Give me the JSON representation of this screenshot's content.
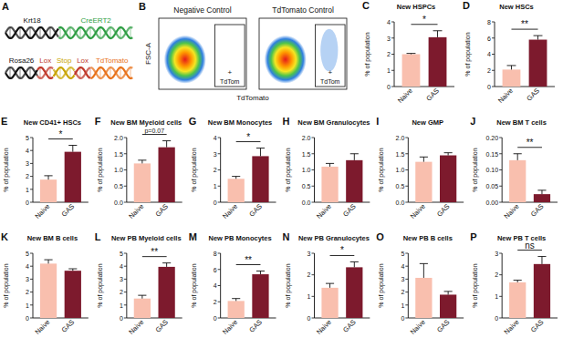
{
  "diagram": {
    "panel_label": "A",
    "constructs": [
      {
        "segments": [
          {
            "label": "Krt18",
            "color": "#111111"
          },
          {
            "label": "CreERT2",
            "color": "#2f9e44"
          }
        ]
      },
      {
        "segments": [
          {
            "label": "Rosa26",
            "color": "#111111"
          },
          {
            "label": "Lox",
            "color": "#c0392b"
          },
          {
            "label": "Stop",
            "color": "#c9a400"
          },
          {
            "label": "Lox",
            "color": "#c0392b"
          },
          {
            "label": "TdTomato",
            "color": "#e8731c"
          }
        ]
      }
    ]
  },
  "flow_plots": {
    "panel_label": "B",
    "x_label": "TdTomato",
    "y_label": "FSC-A",
    "plots": [
      {
        "title": "Negative Control",
        "gate_label": "TdTom",
        "gate_sign": "+"
      },
      {
        "title": "TdTomato Control",
        "gate_label": "TdTom",
        "gate_sign": "+"
      }
    ]
  },
  "chart_data": [
    {
      "type": "bar",
      "panel_label": "C",
      "title": "New HSPCs",
      "y_label": "% of population",
      "categories": [
        "Naive",
        "GAS"
      ],
      "values": [
        2.0,
        3.05
      ],
      "errors": [
        0.05,
        0.4
      ],
      "colors": [
        "#f9bfae",
        "#7d1a2d"
      ],
      "ylim": [
        0,
        4
      ],
      "yticks": [
        0,
        1,
        2,
        3,
        4
      ],
      "annotation": "*"
    },
    {
      "type": "bar",
      "panel_label": "D",
      "title": "New HSCs",
      "y_label": "% of population",
      "categories": [
        "Naive",
        "GAS"
      ],
      "values": [
        2.1,
        5.8
      ],
      "errors": [
        0.5,
        0.5
      ],
      "colors": [
        "#f9bfae",
        "#7d1a2d"
      ],
      "ylim": [
        0,
        8
      ],
      "yticks": [
        0,
        2,
        4,
        6,
        8
      ],
      "annotation": "**"
    },
    {
      "type": "bar",
      "panel_label": "E",
      "title": "New CD41+ HSCs",
      "y_label": "% of population",
      "categories": [
        "Naive",
        "GAS"
      ],
      "values": [
        1.75,
        3.9
      ],
      "errors": [
        0.3,
        0.5
      ],
      "colors": [
        "#f9bfae",
        "#7d1a2d"
      ],
      "ylim": [
        0,
        5
      ],
      "yticks": [
        0,
        1,
        2,
        3,
        4,
        5
      ],
      "annotation": "*"
    },
    {
      "type": "bar",
      "panel_label": "F",
      "title": "New BM Myeloid cells",
      "y_label": "% of population",
      "categories": [
        "Naive",
        "GAS"
      ],
      "values": [
        1.2,
        1.7
      ],
      "errors": [
        0.1,
        0.2
      ],
      "colors": [
        "#f9bfae",
        "#7d1a2d"
      ],
      "ylim": [
        0,
        2
      ],
      "yticks": [
        {
          "value": 0,
          "label": "0.0"
        },
        0.5,
        {
          "value": 1,
          "label": "1.0"
        },
        1.5,
        {
          "value": 2,
          "label": "2.0"
        }
      ],
      "annotation": "p=0.07"
    },
    {
      "type": "bar",
      "panel_label": "G",
      "title": "New BM Monocytes",
      "y_label": "% of population",
      "categories": [
        "Naive",
        "GAS"
      ],
      "values": [
        1.45,
        2.85
      ],
      "errors": [
        0.15,
        0.5
      ],
      "colors": [
        "#f9bfae",
        "#7d1a2d"
      ],
      "ylim": [
        0,
        4
      ],
      "yticks": [
        0,
        1,
        2,
        3,
        4
      ],
      "annotation": "*"
    },
    {
      "type": "bar",
      "panel_label": "H",
      "title": "New BM Granulocytes",
      "y_label": "% of population",
      "categories": [
        "Naive",
        "GAS"
      ],
      "values": [
        1.1,
        1.3
      ],
      "errors": [
        0.1,
        0.2
      ],
      "colors": [
        "#f9bfae",
        "#7d1a2d"
      ],
      "ylim": [
        0,
        2
      ],
      "yticks": [
        {
          "value": 0,
          "label": "0.0"
        },
        0.5,
        {
          "value": 1,
          "label": "1.0"
        },
        1.5,
        {
          "value": 2,
          "label": "2.0"
        }
      ]
    },
    {
      "type": "bar",
      "panel_label": "I",
      "title": "New GMP",
      "y_label": "% of population",
      "categories": [
        "Naive",
        "GAS"
      ],
      "values": [
        1.25,
        1.45
      ],
      "errors": [
        0.15,
        0.08
      ],
      "colors": [
        "#f9bfae",
        "#7d1a2d"
      ],
      "ylim": [
        0,
        2
      ],
      "yticks": [
        {
          "value": 0,
          "label": "0.0"
        },
        0.5,
        {
          "value": 1,
          "label": "1.0"
        },
        1.5,
        {
          "value": 2,
          "label": "2.0"
        }
      ]
    },
    {
      "type": "bar",
      "panel_label": "J",
      "title": "New BM T cells",
      "y_label": "% of population",
      "categories": [
        "Naive",
        "GAS"
      ],
      "values": [
        0.13,
        0.025
      ],
      "errors": [
        0.02,
        0.012
      ],
      "colors": [
        "#f9bfae",
        "#7d1a2d"
      ],
      "ylim": [
        0,
        0.2
      ],
      "yticks": [
        {
          "value": 0,
          "label": "0.00"
        },
        0.05,
        {
          "value": 0.1,
          "label": "0.10"
        },
        0.15,
        {
          "value": 0.2,
          "label": "0.20"
        }
      ],
      "annotation": "**"
    },
    {
      "type": "bar",
      "panel_label": "K",
      "title": "New BM B cells",
      "y_label": "% of population",
      "categories": [
        "Naive",
        "GAS"
      ],
      "values": [
        4.2,
        3.65
      ],
      "errors": [
        0.3,
        0.15
      ],
      "colors": [
        "#f9bfae",
        "#7d1a2d"
      ],
      "ylim": [
        0,
        5
      ],
      "yticks": [
        0,
        1,
        2,
        3,
        4,
        5
      ]
    },
    {
      "type": "bar",
      "panel_label": "L",
      "title": "New PB Myeloid cells",
      "y_label": "% of population",
      "categories": [
        "Naive",
        "GAS"
      ],
      "values": [
        1.5,
        3.95
      ],
      "errors": [
        0.25,
        0.3
      ],
      "colors": [
        "#f9bfae",
        "#7d1a2d"
      ],
      "ylim": [
        0,
        5
      ],
      "yticks": [
        0,
        1,
        2,
        3,
        4,
        5
      ],
      "annotation": "**"
    },
    {
      "type": "bar",
      "panel_label": "M",
      "title": "New PB Monocytes",
      "y_label": "% of population",
      "categories": [
        "Naive",
        "GAS"
      ],
      "values": [
        2.1,
        5.4
      ],
      "errors": [
        0.3,
        0.4
      ],
      "colors": [
        "#f9bfae",
        "#7d1a2d"
      ],
      "ylim": [
        0,
        8
      ],
      "yticks": [
        0,
        2,
        4,
        6,
        8
      ],
      "annotation": "**"
    },
    {
      "type": "bar",
      "panel_label": "N",
      "title": "New PB Granulocytes",
      "y_label": "% of population",
      "categories": [
        "Naive",
        "GAS"
      ],
      "values": [
        1.4,
        2.35
      ],
      "errors": [
        0.2,
        0.25
      ],
      "colors": [
        "#f9bfae",
        "#7d1a2d"
      ],
      "ylim": [
        0,
        3
      ],
      "yticks": [
        0,
        1,
        2,
        3
      ],
      "annotation": "*"
    },
    {
      "type": "bar",
      "panel_label": "O",
      "title": "New PB B cells",
      "y_label": "% of population",
      "categories": [
        "Naive",
        "GAS"
      ],
      "values": [
        3.1,
        1.8
      ],
      "errors": [
        1.1,
        0.25
      ],
      "colors": [
        "#f9bfae",
        "#7d1a2d"
      ],
      "ylim": [
        0,
        5
      ],
      "yticks": [
        0,
        1,
        2,
        3,
        4,
        5
      ]
    },
    {
      "type": "bar",
      "panel_label": "P",
      "title": "New PB T cells",
      "y_label": "% of population",
      "categories": [
        "Naive",
        "GAS"
      ],
      "values": [
        1.65,
        2.5
      ],
      "errors": [
        0.1,
        0.35
      ],
      "colors": [
        "#f9bfae",
        "#7d1a2d"
      ],
      "ylim": [
        0,
        3
      ],
      "yticks": [
        0,
        1,
        2,
        3
      ],
      "annotation": "ns"
    }
  ]
}
